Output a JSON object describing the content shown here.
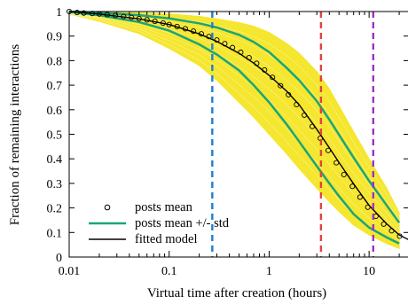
{
  "chart_data": {
    "type": "line",
    "title": "",
    "xlabel": "Virtual time after creation (hours)",
    "ylabel": "Fraction of remaining interactions",
    "x_scale": "log",
    "xlim": [
      0.01,
      25
    ],
    "ylim": [
      0,
      1
    ],
    "xticks": [
      {
        "value": 0.01,
        "label": "0.01"
      },
      {
        "value": 0.1,
        "label": "0.1"
      },
      {
        "value": 1,
        "label": "1"
      },
      {
        "value": 10,
        "label": "10"
      }
    ],
    "yticks": [
      {
        "value": 0,
        "label": "0"
      },
      {
        "value": 0.1,
        "label": "0.1"
      },
      {
        "value": 0.2,
        "label": "0.2"
      },
      {
        "value": 0.3,
        "label": "0.3"
      },
      {
        "value": 0.4,
        "label": "0.4"
      },
      {
        "value": 0.5,
        "label": "0.5"
      },
      {
        "value": 0.6,
        "label": "0.6"
      },
      {
        "value": 0.7,
        "label": "0.7"
      },
      {
        "value": 0.8,
        "label": "0.8"
      },
      {
        "value": 0.9,
        "label": "0.9"
      },
      {
        "value": 1,
        "label": "1"
      }
    ],
    "grid": false,
    "legend_position": "bottom-left",
    "series": [
      {
        "name": "posts mean",
        "style": "open-circle markers",
        "color": "#000000",
        "x": [
          0.01,
          0.012,
          0.014,
          0.017,
          0.02,
          0.024,
          0.029,
          0.035,
          0.042,
          0.05,
          0.06,
          0.072,
          0.087,
          0.1,
          0.12,
          0.145,
          0.175,
          0.21,
          0.25,
          0.3,
          0.36,
          0.43,
          0.52,
          0.63,
          0.75,
          0.9,
          1.08,
          1.3,
          1.56,
          1.88,
          2.25,
          2.7,
          3.25,
          3.9,
          4.7,
          5.6,
          6.8,
          8.1,
          9.7,
          11.7,
          14,
          16.8,
          20.2
        ],
        "y": [
          1.0,
          0.996,
          0.994,
          0.992,
          0.99,
          0.987,
          0.984,
          0.98,
          0.976,
          0.971,
          0.966,
          0.96,
          0.953,
          0.947,
          0.939,
          0.93,
          0.92,
          0.909,
          0.898,
          0.884,
          0.869,
          0.853,
          0.834,
          0.812,
          0.789,
          0.762,
          0.732,
          0.698,
          0.661,
          0.621,
          0.578,
          0.532,
          0.484,
          0.434,
          0.384,
          0.336,
          0.288,
          0.244,
          0.203,
          0.166,
          0.134,
          0.107,
          0.085
        ]
      },
      {
        "name": "posts mean +/- std",
        "style": "line",
        "color": "#1aa57a",
        "upper": {
          "x": [
            0.01,
            0.02,
            0.05,
            0.1,
            0.2,
            0.3,
            0.5,
            0.7,
            1,
            1.5,
            2,
            3,
            4,
            5,
            7,
            10,
            15,
            20
          ],
          "y": [
            1.0,
            0.995,
            0.985,
            0.972,
            0.952,
            0.935,
            0.905,
            0.876,
            0.835,
            0.77,
            0.72,
            0.635,
            0.56,
            0.498,
            0.405,
            0.31,
            0.21,
            0.14
          ]
        },
        "lower": {
          "x": [
            0.01,
            0.02,
            0.05,
            0.1,
            0.2,
            0.3,
            0.5,
            0.7,
            1,
            1.5,
            2,
            3,
            4,
            5,
            7,
            10,
            15,
            20
          ],
          "y": [
            0.998,
            0.985,
            0.957,
            0.922,
            0.866,
            0.825,
            0.76,
            0.7,
            0.63,
            0.54,
            0.47,
            0.37,
            0.3,
            0.248,
            0.175,
            0.12,
            0.08,
            0.055
          ]
        }
      },
      {
        "name": "fitted model",
        "style": "line",
        "color": "#000000",
        "x": [
          0.01,
          0.02,
          0.05,
          0.1,
          0.2,
          0.3,
          0.5,
          0.7,
          1,
          1.5,
          2,
          3,
          4,
          5,
          7,
          10,
          15,
          20,
          25
        ],
        "y": [
          1.0,
          0.99,
          0.97,
          0.947,
          0.909,
          0.878,
          0.83,
          0.79,
          0.74,
          0.675,
          0.62,
          0.52,
          0.445,
          0.385,
          0.298,
          0.21,
          0.135,
          0.09,
          0.07
        ]
      }
    ],
    "background_band": {
      "description_color": "yellow",
      "color": "#f5e62f",
      "upper": {
        "x": [
          0.01,
          0.02,
          0.05,
          0.1,
          0.2,
          0.3,
          0.5,
          0.7,
          1,
          1.5,
          2,
          3,
          4,
          5,
          7,
          10,
          15,
          20
        ],
        "y": [
          1.0,
          0.998,
          0.995,
          0.99,
          0.98,
          0.97,
          0.955,
          0.94,
          0.915,
          0.87,
          0.83,
          0.755,
          0.685,
          0.615,
          0.51,
          0.4,
          0.28,
          0.18
        ]
      },
      "lower": {
        "x": [
          0.01,
          0.02,
          0.05,
          0.1,
          0.2,
          0.3,
          0.5,
          0.7,
          1,
          1.5,
          2,
          3,
          4,
          5,
          7,
          10,
          15,
          20
        ],
        "y": [
          0.99,
          0.96,
          0.91,
          0.85,
          0.78,
          0.72,
          0.63,
          0.57,
          0.5,
          0.42,
          0.36,
          0.28,
          0.225,
          0.185,
          0.13,
          0.09,
          0.055,
          0.035
        ]
      }
    },
    "vlines": [
      {
        "x": 0.27,
        "color": "#1f7fd0",
        "style": "dashed"
      },
      {
        "x": 3.3,
        "color": "#e3423c",
        "style": "dashed"
      },
      {
        "x": 11,
        "color": "#9a32c8",
        "style": "dashed"
      }
    ]
  }
}
